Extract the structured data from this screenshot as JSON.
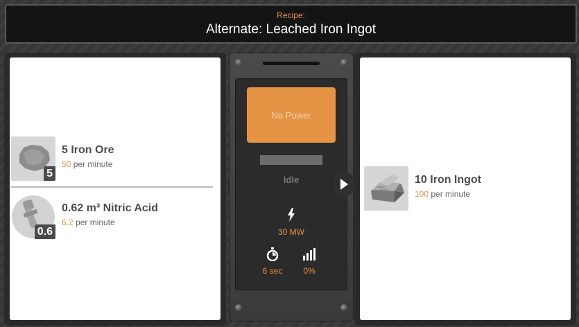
{
  "header": {
    "recipe_label": "Recipe:",
    "recipe_name": "Alternate: Leached Iron Ingot"
  },
  "inputs": [
    {
      "name": "5 Iron Ore",
      "badge": "5",
      "rate": "50",
      "rate_suffix": "per minute",
      "icon": "iron-ore-icon"
    },
    {
      "name": "0.62 m³ Nitric Acid",
      "badge": "0.6",
      "rate": "6.2",
      "rate_suffix": "per minute",
      "icon": "nitric-acid-icon"
    }
  ],
  "machine": {
    "power_status": "No Power",
    "status": "Idle",
    "power_value": "30 MW",
    "time_value": "6 sec",
    "efficiency_value": "0%"
  },
  "outputs": [
    {
      "name": "10 Iron Ingot",
      "rate": "100",
      "rate_suffix": "per minute",
      "icon": "iron-ingot-icon"
    }
  ],
  "colors": {
    "accent": "#e59344",
    "background": "#3a3a3a",
    "panel": "#ffffff"
  }
}
